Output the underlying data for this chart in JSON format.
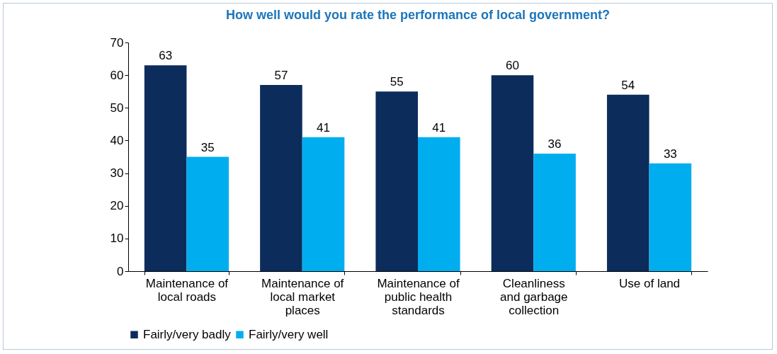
{
  "chart_data": {
    "type": "bar",
    "title": "How well would you rate the performance of local government?",
    "categories": [
      "Maintenance of local roads",
      "Maintenance of local market places",
      "Maintenance of public health standards",
      "Cleanliness and garbage collection",
      "Use of land"
    ],
    "series": [
      {
        "name": "Fairly/very badly",
        "color": "#0c2c5c",
        "values": [
          63,
          57,
          55,
          60,
          54
        ]
      },
      {
        "name": "Fairly/very well",
        "color": "#00aeef",
        "values": [
          35,
          41,
          41,
          36,
          33
        ]
      }
    ],
    "ylim": [
      0,
      70
    ],
    "yticks": [
      0,
      10,
      20,
      30,
      40,
      50,
      60,
      70
    ],
    "data_labels": true,
    "legend": "bottom"
  }
}
